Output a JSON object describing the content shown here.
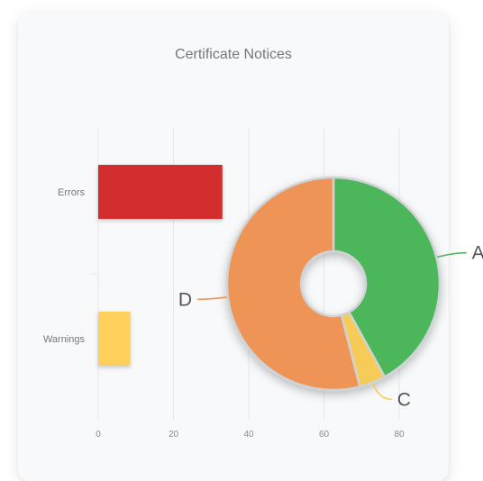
{
  "chart_title": "Certificate Notices",
  "chart_data": [
    {
      "type": "bar",
      "orientation": "horizontal",
      "categories": [
        "Errors",
        "Warnings"
      ],
      "values": [
        33,
        8.5
      ],
      "colors": [
        "#d32f2f",
        "#ffd05c"
      ],
      "xlim": [
        0,
        88
      ],
      "xticks": [
        0,
        20,
        40,
        60,
        80
      ],
      "grid": true
    },
    {
      "type": "pie",
      "donut": true,
      "labels": [
        "A",
        "C",
        "D"
      ],
      "values": [
        42,
        4,
        54
      ],
      "colors": [
        "#4cb75a",
        "#f7cb58",
        "#ee9457"
      ],
      "separator_color": "#cfd3d6"
    }
  ]
}
